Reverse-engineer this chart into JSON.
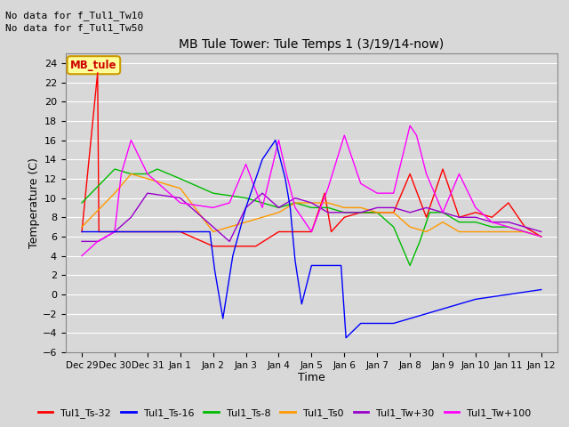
{
  "title": "MB Tule Tower: Tule Temps 1 (3/19/14-now)",
  "xlabel": "Time",
  "ylabel": "Temperature (C)",
  "no_data_text": [
    "No data for f_Tul1_Tw10",
    "No data for f_Tul1_Tw50"
  ],
  "sensor_label": "MB_tule",
  "ylim": [
    -6,
    25
  ],
  "yticks": [
    -6,
    -4,
    -2,
    0,
    2,
    4,
    6,
    8,
    10,
    12,
    14,
    16,
    18,
    20,
    22,
    24
  ],
  "xtick_labels": [
    "Dec 29",
    "Dec 30",
    "Dec 31",
    "Jan 1",
    "Jan 2",
    "Jan 3",
    "Jan 4",
    "Jan 5",
    "Jan 6",
    "Jan 7",
    "Jan 8",
    "Jan 9",
    "Jan 10",
    "Jan 11",
    "Jan 12"
  ],
  "xtick_positions": [
    0,
    1,
    2,
    3,
    4,
    5,
    6,
    7,
    8,
    9,
    10,
    11,
    12,
    13,
    14
  ],
  "bg_color": "#d8d8d8",
  "grid_color": "#ffffff",
  "legend_entries": [
    {
      "label": "Tul1_Ts-32",
      "color": "#ff0000"
    },
    {
      "label": "Tul1_Ts-16",
      "color": "#0000ff"
    },
    {
      "label": "Tul1_Ts-8",
      "color": "#00bb00"
    },
    {
      "label": "Tul1_Ts0",
      "color": "#ff9900"
    },
    {
      "label": "Tul1_Tw+30",
      "color": "#9900cc"
    },
    {
      "label": "Tul1_Tw+100",
      "color": "#ff00ff"
    }
  ],
  "series": {
    "Ts32": {
      "color": "#ff0000",
      "x": [
        0.0,
        0.48,
        0.52,
        1.0,
        2.0,
        3.0,
        4.0,
        5.0,
        5.3,
        6.0,
        6.5,
        7.0,
        7.4,
        7.6,
        8.0,
        8.5,
        9.0,
        9.5,
        10.0,
        10.5,
        11.0,
        11.5,
        12.0,
        12.5,
        13.0,
        13.5,
        14.0
      ],
      "y": [
        6.5,
        23.0,
        6.5,
        6.5,
        6.5,
        6.5,
        5.0,
        5.0,
        5.0,
        6.5,
        6.5,
        6.5,
        10.5,
        6.5,
        8.0,
        8.5,
        8.5,
        8.5,
        12.5,
        8.0,
        13.0,
        8.0,
        8.5,
        8.0,
        9.5,
        7.0,
        6.0
      ]
    },
    "Ts16": {
      "color": "#0000ff",
      "x": [
        0.0,
        1.0,
        2.0,
        3.0,
        3.9,
        4.05,
        4.3,
        4.6,
        5.0,
        5.5,
        5.9,
        6.05,
        6.2,
        6.35,
        6.5,
        6.7,
        7.0,
        7.5,
        7.9,
        8.05,
        8.5,
        9.0,
        9.5,
        10.0,
        11.0,
        12.0,
        13.0,
        14.0
      ],
      "y": [
        6.5,
        6.5,
        6.5,
        6.5,
        6.5,
        2.5,
        -2.5,
        4.0,
        9.0,
        14.0,
        16.0,
        14.0,
        12.0,
        9.0,
        3.5,
        -1.0,
        3.0,
        3.0,
        3.0,
        -4.5,
        -3.0,
        -3.0,
        -3.0,
        -2.5,
        -1.5,
        -0.5,
        0.0,
        0.5
      ]
    },
    "Ts8": {
      "color": "#00bb00",
      "x": [
        0.0,
        1.0,
        1.5,
        2.0,
        2.3,
        3.0,
        4.0,
        5.0,
        5.5,
        6.0,
        6.5,
        7.0,
        7.5,
        8.0,
        8.5,
        9.0,
        9.5,
        10.0,
        10.3,
        10.6,
        11.0,
        11.5,
        12.0,
        12.5,
        13.0,
        13.5,
        14.0
      ],
      "y": [
        9.5,
        13.0,
        12.5,
        12.5,
        13.0,
        12.0,
        10.5,
        10.0,
        9.5,
        9.0,
        9.5,
        9.0,
        9.0,
        8.5,
        8.5,
        8.5,
        7.0,
        3.0,
        5.5,
        8.5,
        8.5,
        7.5,
        7.5,
        7.0,
        7.0,
        6.5,
        6.0
      ]
    },
    "Ts0": {
      "color": "#ff9900",
      "x": [
        0.0,
        1.0,
        1.5,
        2.0,
        3.0,
        4.0,
        5.0,
        5.5,
        6.0,
        6.5,
        7.0,
        7.5,
        8.0,
        8.5,
        9.0,
        9.5,
        10.0,
        10.5,
        11.0,
        11.5,
        12.0,
        12.5,
        13.0,
        13.5,
        14.0
      ],
      "y": [
        7.0,
        10.5,
        12.5,
        12.0,
        11.0,
        6.5,
        7.5,
        8.0,
        8.5,
        9.5,
        9.5,
        9.5,
        9.0,
        9.0,
        8.5,
        8.5,
        7.0,
        6.5,
        7.5,
        6.5,
        6.5,
        6.5,
        6.5,
        6.5,
        6.0
      ]
    },
    "Tw30": {
      "color": "#9900cc",
      "x": [
        0.0,
        0.5,
        1.0,
        1.5,
        2.0,
        3.0,
        4.0,
        4.5,
        5.0,
        5.5,
        6.0,
        6.5,
        7.0,
        7.5,
        8.0,
        8.5,
        9.0,
        9.5,
        10.0,
        10.5,
        11.0,
        11.5,
        12.0,
        12.5,
        13.0,
        13.5,
        14.0
      ],
      "y": [
        5.5,
        5.5,
        6.5,
        8.0,
        10.5,
        10.0,
        7.0,
        5.5,
        9.0,
        10.5,
        9.0,
        10.0,
        9.5,
        8.5,
        8.5,
        8.5,
        9.0,
        9.0,
        8.5,
        9.0,
        8.5,
        8.0,
        8.0,
        7.5,
        7.5,
        7.0,
        6.5
      ]
    },
    "Tw100": {
      "color": "#ff00ff",
      "x": [
        0.0,
        0.48,
        1.0,
        1.2,
        1.5,
        2.0,
        3.0,
        4.0,
        4.5,
        5.0,
        5.5,
        6.0,
        6.2,
        6.5,
        7.0,
        7.5,
        8.0,
        8.5,
        9.0,
        9.5,
        10.0,
        10.2,
        10.5,
        11.0,
        11.5,
        12.0,
        12.5,
        13.0,
        13.5,
        14.0
      ],
      "y": [
        4.0,
        5.5,
        6.5,
        12.5,
        16.0,
        12.5,
        9.5,
        9.0,
        9.5,
        13.5,
        9.0,
        16.0,
        13.0,
        9.0,
        6.5,
        11.0,
        16.5,
        11.5,
        10.5,
        10.5,
        17.5,
        16.5,
        12.5,
        8.5,
        12.5,
        9.0,
        7.5,
        7.0,
        6.5,
        6.0
      ]
    }
  }
}
